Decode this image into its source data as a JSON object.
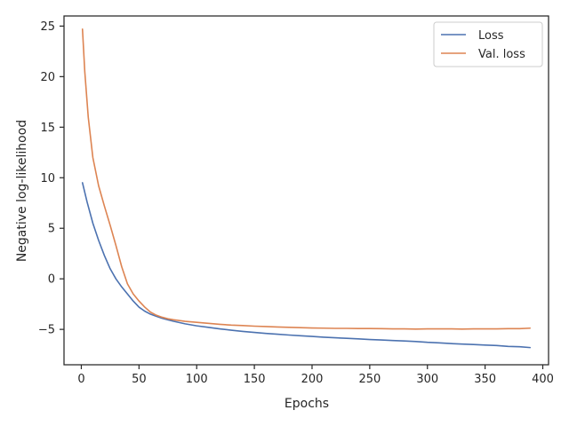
{
  "chart_data": {
    "type": "line",
    "title": "",
    "xlabel": "Epochs",
    "ylabel": "Negative log-likelihood",
    "xlim": [
      -15,
      405
    ],
    "ylim": [
      -8.5,
      26
    ],
    "xticks": [
      0,
      50,
      100,
      150,
      200,
      250,
      300,
      350,
      400
    ],
    "yticks": [
      -5,
      0,
      5,
      10,
      15,
      20,
      25
    ],
    "xtick_labels": [
      "0",
      "50",
      "100",
      "150",
      "200",
      "250",
      "300",
      "350",
      "400"
    ],
    "ytick_labels": [
      "−5",
      "0",
      "5",
      "10",
      "15",
      "20",
      "25"
    ],
    "grid": false,
    "legend_position": "top-right",
    "series": [
      {
        "name": "Loss",
        "color": "#4c72b0",
        "x": [
          1,
          5,
          10,
          15,
          20,
          25,
          30,
          35,
          40,
          45,
          50,
          55,
          60,
          65,
          70,
          75,
          80,
          90,
          100,
          110,
          120,
          130,
          140,
          150,
          160,
          170,
          180,
          190,
          200,
          210,
          220,
          230,
          240,
          250,
          260,
          270,
          280,
          290,
          300,
          310,
          320,
          330,
          340,
          350,
          360,
          370,
          380,
          389
        ],
        "values": [
          9.5,
          7.6,
          5.5,
          3.8,
          2.3,
          1.0,
          0.0,
          -0.8,
          -1.5,
          -2.2,
          -2.8,
          -3.2,
          -3.5,
          -3.7,
          -3.9,
          -4.05,
          -4.2,
          -4.45,
          -4.65,
          -4.8,
          -4.95,
          -5.08,
          -5.2,
          -5.3,
          -5.4,
          -5.48,
          -5.56,
          -5.63,
          -5.7,
          -5.77,
          -5.83,
          -5.88,
          -5.94,
          -6.0,
          -6.05,
          -6.1,
          -6.15,
          -6.2,
          -6.28,
          -6.33,
          -6.4,
          -6.45,
          -6.5,
          -6.55,
          -6.6,
          -6.68,
          -6.72,
          -6.8
        ]
      },
      {
        "name": "Val. loss",
        "color": "#dd8452",
        "x": [
          1,
          3,
          6,
          10,
          15,
          20,
          25,
          30,
          35,
          40,
          45,
          50,
          55,
          60,
          65,
          70,
          75,
          80,
          90,
          100,
          110,
          120,
          130,
          140,
          150,
          160,
          170,
          180,
          190,
          200,
          210,
          220,
          230,
          240,
          250,
          260,
          270,
          280,
          290,
          300,
          310,
          320,
          330,
          340,
          350,
          360,
          370,
          380,
          389
        ],
        "values": [
          24.7,
          20.5,
          16.0,
          12.0,
          9.2,
          7.2,
          5.3,
          3.3,
          1.2,
          -0.5,
          -1.5,
          -2.2,
          -2.8,
          -3.3,
          -3.6,
          -3.8,
          -3.95,
          -4.05,
          -4.2,
          -4.3,
          -4.4,
          -4.5,
          -4.58,
          -4.62,
          -4.68,
          -4.72,
          -4.76,
          -4.8,
          -4.83,
          -4.86,
          -4.88,
          -4.9,
          -4.9,
          -4.92,
          -4.92,
          -4.93,
          -4.95,
          -4.95,
          -4.97,
          -4.95,
          -4.95,
          -4.95,
          -4.97,
          -4.95,
          -4.95,
          -4.95,
          -4.93,
          -4.93,
          -4.88
        ]
      }
    ]
  }
}
